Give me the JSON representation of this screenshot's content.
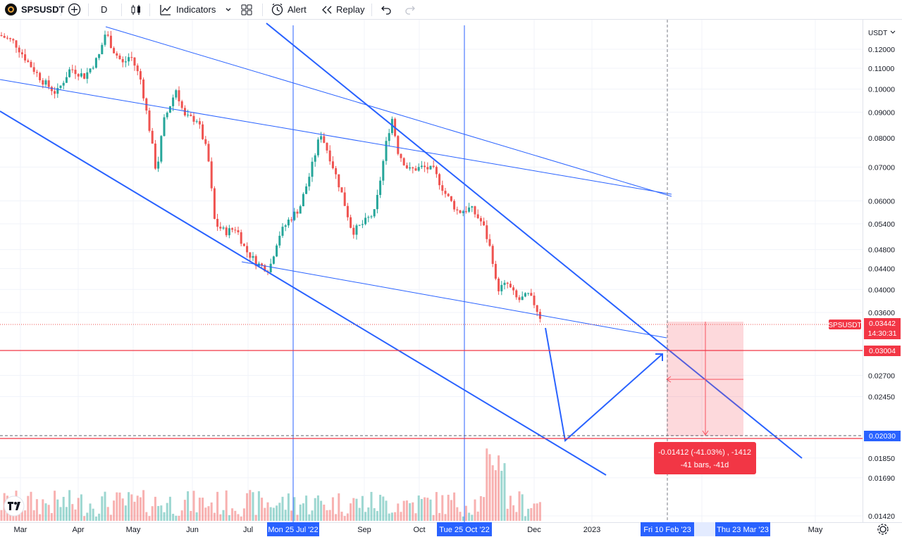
{
  "toolbar": {
    "symbol": "SPSUSDT",
    "interval": "D",
    "indicators_label": "Indicators",
    "alert_label": "Alert",
    "replay_label": "Replay"
  },
  "price_axis": {
    "currency": "USDT",
    "ticks": [
      "0.12000",
      "0.11000",
      "0.10000",
      "0.09000",
      "0.08000",
      "0.07000",
      "0.06000",
      "0.05400",
      "0.04800",
      "0.04400",
      "0.04000",
      "0.03600",
      "0.02700",
      "0.02450",
      "0.01850",
      "0.01690",
      "0.01420"
    ],
    "tick_values": [
      0.12,
      0.11,
      0.1,
      0.09,
      0.08,
      0.07,
      0.06,
      0.054,
      0.048,
      0.044,
      0.04,
      0.036,
      0.027,
      0.0245,
      0.0185,
      0.0169,
      0.0142
    ]
  },
  "time_axis": {
    "labels": [
      "Mar",
      "Apr",
      "May",
      "Jun",
      "Jul",
      "Sep",
      "Oct",
      "Dec",
      "2023",
      "Mar",
      "May"
    ],
    "highlighted": [
      "Mon 25 Jul '22",
      "Tue 25 Oct '22",
      "Fri 10 Feb '23",
      "Thu 23 Mar '23"
    ]
  },
  "badges": {
    "symbol_tag": "SPSUSDT",
    "last_price": "0.03442",
    "countdown": "14:30:31",
    "target_price": "0.03004",
    "low_price": "0.02030"
  },
  "measure": {
    "line1": "-0.01412 (-41.03%) , -1412",
    "line2": "-41 bars, -41d"
  },
  "colors": {
    "up": "#26a69a",
    "down": "#ef5350",
    "drawing": "#2962ff",
    "axis_badge_blue": "#2962ff"
  },
  "icons": [
    "plus-circle-icon",
    "candles-icon",
    "indicators-icon",
    "chevron-down-icon",
    "layout-grid-icon",
    "alert-clock-icon",
    "replay-icon",
    "undo-icon",
    "redo-icon",
    "settings-icon",
    "tradingview-logo-icon"
  ]
}
